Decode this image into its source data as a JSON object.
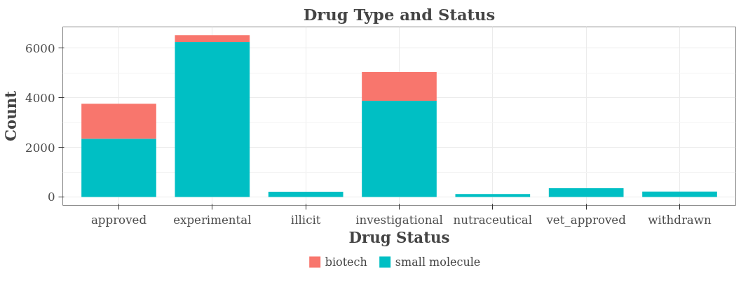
{
  "chart_data": {
    "type": "bar",
    "title": "Drug Type and Status",
    "xlabel": "Drug Status",
    "ylabel": "Count",
    "categories": [
      "approved",
      "experimental",
      "illicit",
      "investigational",
      "nutraceutical",
      "vet_approved",
      "withdrawn"
    ],
    "stacked": true,
    "series": [
      {
        "name": "small molecule",
        "color": "#00bfc4",
        "values": [
          2350,
          6250,
          210,
          3880,
          120,
          350,
          220
        ]
      },
      {
        "name": "biotech",
        "color": "#f8766d",
        "values": [
          1410,
          280,
          0,
          1160,
          0,
          0,
          0
        ]
      }
    ],
    "ylim": [
      -340,
      6860
    ],
    "yticks": [
      0,
      2000,
      4000,
      6000
    ],
    "grid": true,
    "legend": "bottom"
  }
}
